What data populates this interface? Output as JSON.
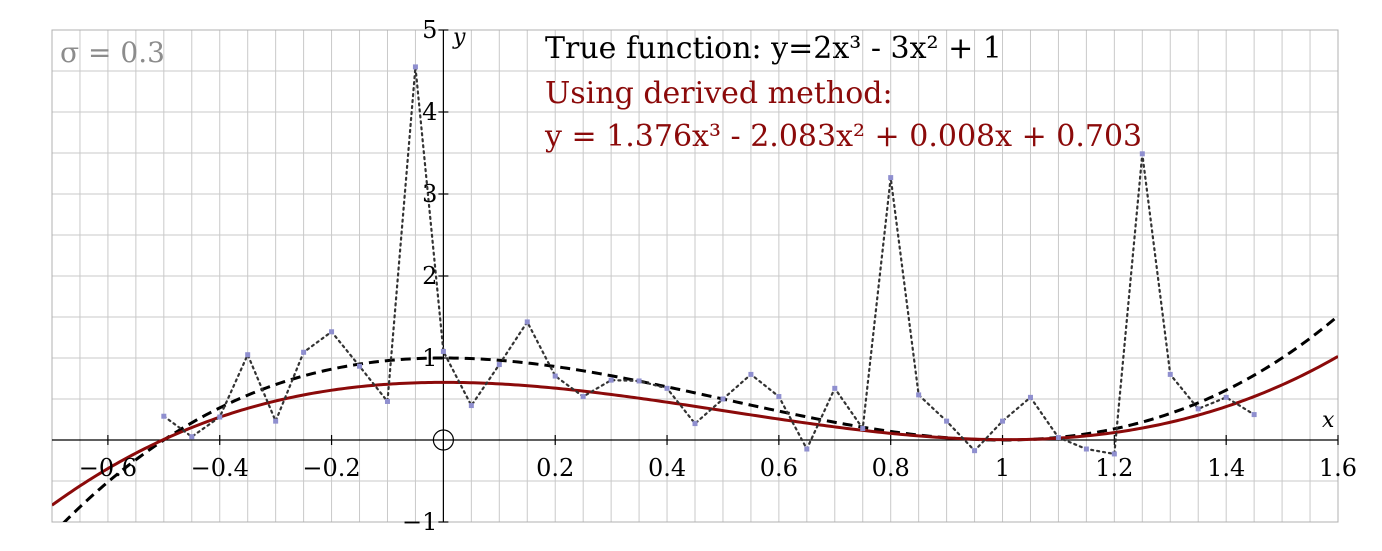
{
  "chart_data": {
    "type": "line",
    "xlabel": "x",
    "ylabel": "y",
    "xlim": [
      -0.7,
      1.6
    ],
    "ylim": [
      -1,
      5
    ],
    "x_ticks": [
      -0.6,
      -0.4,
      -0.2,
      0.2,
      0.4,
      0.6,
      0.8,
      1,
      1.2,
      1.4,
      1.6
    ],
    "x_tick_labels": [
      "−0.6",
      "−0.4",
      "−0.2",
      "0.2",
      "0.4",
      "0.6",
      "0.8",
      "1",
      "1.2",
      "1.4",
      "1.6"
    ],
    "y_ticks": [
      -1,
      1,
      2,
      3,
      4,
      5
    ],
    "y_tick_labels": [
      "−1",
      "1",
      "2",
      "3",
      "4",
      "5"
    ],
    "grid": true,
    "annotations": {
      "sigma": "σ = 0.3",
      "true_function": "True function: y=2x³ - 3x² + 1",
      "derived_title": "Using derived method:",
      "derived_equation": "y = 1.376x³ - 2.083x² + 0.008x + 0.703"
    },
    "series": [
      {
        "style": "dotted",
        "color": "#333333",
        "marker_color": "#8f8fcf",
        "x": [
          -0.5,
          -0.45,
          -0.4,
          -0.35,
          -0.3,
          -0.25,
          -0.2,
          -0.15,
          -0.1,
          -0.05,
          0,
          0.05,
          0.1,
          0.15,
          0.2,
          0.25,
          0.3,
          0.35,
          0.4,
          0.45,
          0.5,
          0.55,
          0.6,
          0.65,
          0.7,
          0.75,
          0.8,
          0.85,
          0.9,
          0.95,
          1,
          1.05,
          1.1,
          1.15,
          1.2,
          1.25,
          1.3,
          1.35,
          1.4,
          1.45
        ],
        "y": [
          0.29,
          0.04,
          0.28,
          1.04,
          0.23,
          1.07,
          1.32,
          0.9,
          0.47,
          4.55,
          1.08,
          0.42,
          0.92,
          1.44,
          0.78,
          0.53,
          0.73,
          0.72,
          0.63,
          0.2,
          0.5,
          0.8,
          0.53,
          -0.11,
          0.63,
          0.14,
          3.2,
          0.55,
          0.23,
          -0.13,
          0.23,
          0.52,
          0.03,
          -0.11,
          -0.17,
          3.49,
          0.8,
          0.38,
          0.52,
          0.31
        ]
      },
      {
        "style": "dashed",
        "color": "#000000",
        "coefficients": [
          2,
          -3,
          0,
          1
        ]
      },
      {
        "style": "solid",
        "color": "#8b0a0a",
        "coefficients": [
          1.376,
          -2.083,
          0.008,
          0.703
        ]
      }
    ]
  }
}
